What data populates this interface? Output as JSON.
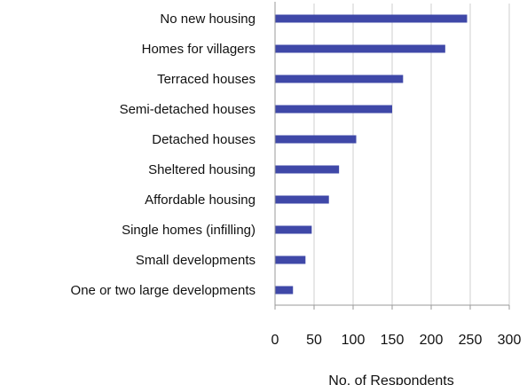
{
  "chart_data": {
    "type": "bar",
    "orientation": "horizontal",
    "categories": [
      "No new housing",
      "Homes for villagers",
      "Terraced houses",
      "Semi-detached houses",
      "Detached houses",
      "Sheltered housing",
      "Affordable housing",
      "Single homes (infilling)",
      "Small developments",
      "One or two large developments"
    ],
    "values": [
      246,
      218,
      164,
      150,
      104,
      82,
      69,
      47,
      39,
      23
    ],
    "xticks": [
      0,
      50,
      100,
      150,
      200,
      250,
      300
    ],
    "xlim": [
      0,
      300
    ],
    "xlabel": "No. of Respondents",
    "title": "",
    "grid": "vertical",
    "bar_color": "#3f48a8",
    "grid_color": "#cfcfcf",
    "axis_color": "#999999"
  }
}
